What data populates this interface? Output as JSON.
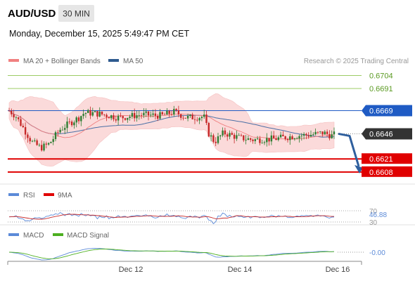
{
  "header": {
    "symbol": "AUD/USD",
    "timeframe": "30 MIN",
    "datetime": "Monday, December 15, 2025 5:49:47 PM CET"
  },
  "legend": {
    "ma20_label": "MA 20 + Bollinger Bands",
    "ma50_label": "MA 50",
    "credit": "Research © 2025 Trading Central",
    "rsi_label": "RSI",
    "rsi_ma_label": "9MA",
    "macd_label": "MACD",
    "macd_signal_label": "MACD Signal"
  },
  "colors": {
    "bull": "#2e7d32",
    "bear": "#c62828",
    "bollinger_fill": "#fbdada",
    "ma20": "#f08080",
    "ma50": "#4a6fa5",
    "resistance": "#9ccc65",
    "support": "#e00000",
    "pivot": "#1f5bc4",
    "arrow": "#2f5f9e",
    "current": "#333333"
  },
  "chart_data": {
    "type": "candlestick",
    "instrument": "AUD/USD",
    "timeframe": "30 MIN",
    "y_range": [
      0.6596,
      0.6712
    ],
    "x_labels": [
      "Dec 12",
      "Dec 14",
      "Dec 16"
    ],
    "levels": [
      {
        "value": 0.6704,
        "label": "0.6704",
        "kind": "resistance"
      },
      {
        "value": 0.6691,
        "label": "0.6691",
        "kind": "resistance"
      },
      {
        "value": 0.6669,
        "label": "0.6669",
        "kind": "pivot"
      },
      {
        "value": 0.6646,
        "label": "0.6646",
        "kind": "current"
      },
      {
        "value": 0.6621,
        "label": "0.6621",
        "kind": "support"
      },
      {
        "value": 0.6608,
        "label": "0.6608",
        "kind": "support"
      }
    ],
    "target_arrow": {
      "from": 0.6646,
      "to": 0.6608
    },
    "rsi": {
      "levels": [
        {
          "value": 70,
          "label": "70"
        },
        {
          "value": 30,
          "label": "30"
        }
      ],
      "current": 46.88,
      "current_label": "46.88"
    },
    "macd": {
      "current": 0.0,
      "current_label": "-0.00"
    }
  }
}
